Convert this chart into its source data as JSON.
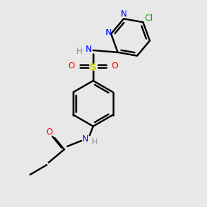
{
  "background_color": "#e8e8e8",
  "line_color": "#000000",
  "bond_width": 1.8,
  "figsize": [
    3.0,
    3.0
  ],
  "dpi": 100,
  "colors": {
    "N": "#0000ff",
    "O": "#ff0000",
    "S": "#cccc00",
    "Cl": "#00aa00",
    "C": "#000000",
    "H": "#888888"
  },
  "xlim": [
    0,
    10
  ],
  "ylim": [
    0,
    10
  ]
}
